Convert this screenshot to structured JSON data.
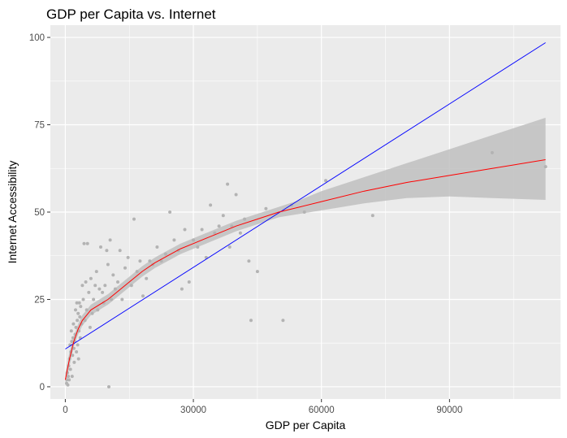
{
  "chart_data": {
    "type": "scatter",
    "title": "GDP per Capita vs. Internet",
    "xlabel": "GDP per Capita",
    "ylabel": "Internet Accessibility",
    "xlim": [
      -3500,
      116000
    ],
    "ylim": [
      -3.5,
      103.5
    ],
    "x_ticks": [
      0,
      30000,
      60000,
      90000
    ],
    "x_tick_labels": [
      "0",
      "30000",
      "60000",
      "90000"
    ],
    "y_ticks": [
      0,
      25,
      50,
      75,
      100
    ],
    "y_tick_labels": [
      "0",
      "25",
      "50",
      "75",
      "100"
    ],
    "grid": true,
    "legend": "none",
    "colors": {
      "panel": "#ebebeb",
      "grid": "#ffffff",
      "points": "#b3b3b3",
      "smooth": "#ff0000",
      "band": "#bfbfbf",
      "linear": "#0000ff"
    },
    "points": [
      [
        300,
        1
      ],
      [
        400,
        2
      ],
      [
        500,
        4
      ],
      [
        600,
        0.5
      ],
      [
        700,
        3
      ],
      [
        800,
        6
      ],
      [
        900,
        2
      ],
      [
        1000,
        8
      ],
      [
        1100,
        12
      ],
      [
        1200,
        5
      ],
      [
        1300,
        10
      ],
      [
        1400,
        16
      ],
      [
        1500,
        13
      ],
      [
        1600,
        3
      ],
      [
        1700,
        9
      ],
      [
        1800,
        14
      ],
      [
        1900,
        18
      ],
      [
        2000,
        11
      ],
      [
        2100,
        7
      ],
      [
        2200,
        13
      ],
      [
        2300,
        15
      ],
      [
        2400,
        22
      ],
      [
        2500,
        17
      ],
      [
        2600,
        10
      ],
      [
        2700,
        24
      ],
      [
        2800,
        19
      ],
      [
        2900,
        12
      ],
      [
        3000,
        21
      ],
      [
        3100,
        8
      ],
      [
        3200,
        16
      ],
      [
        3300,
        24
      ],
      [
        3400,
        20
      ],
      [
        3500,
        14
      ],
      [
        3600,
        23
      ],
      [
        3800,
        18
      ],
      [
        4000,
        29
      ],
      [
        4200,
        25
      ],
      [
        4400,
        41
      ],
      [
        4600,
        19
      ],
      [
        4800,
        30
      ],
      [
        5000,
        22
      ],
      [
        5200,
        41
      ],
      [
        5500,
        27
      ],
      [
        5800,
        17
      ],
      [
        6000,
        31
      ],
      [
        6300,
        21
      ],
      [
        6600,
        25
      ],
      [
        7000,
        29
      ],
      [
        7300,
        33
      ],
      [
        7600,
        22
      ],
      [
        8000,
        28
      ],
      [
        8300,
        40
      ],
      [
        8700,
        27
      ],
      [
        9000,
        24
      ],
      [
        9300,
        29
      ],
      [
        9700,
        39
      ],
      [
        10000,
        35
      ],
      [
        10200,
        0
      ],
      [
        10500,
        42
      ],
      [
        10800,
        25
      ],
      [
        11200,
        32
      ],
      [
        11700,
        28
      ],
      [
        12300,
        30
      ],
      [
        12800,
        39
      ],
      [
        13300,
        25
      ],
      [
        14000,
        34
      ],
      [
        14700,
        37
      ],
      [
        15500,
        29
      ],
      [
        16100,
        48
      ],
      [
        16800,
        33
      ],
      [
        17500,
        36
      ],
      [
        18200,
        26
      ],
      [
        19000,
        31
      ],
      [
        19800,
        36
      ],
      [
        20500,
        35
      ],
      [
        21500,
        40
      ],
      [
        22500,
        36
      ],
      [
        23500,
        38
      ],
      [
        24500,
        50
      ],
      [
        25500,
        42
      ],
      [
        26500,
        39
      ],
      [
        27300,
        28
      ],
      [
        28000,
        45
      ],
      [
        29000,
        30
      ],
      [
        30000,
        42
      ],
      [
        31000,
        40
      ],
      [
        32000,
        45
      ],
      [
        33000,
        37
      ],
      [
        34000,
        52
      ],
      [
        35000,
        44
      ],
      [
        36000,
        46
      ],
      [
        37000,
        49
      ],
      [
        38000,
        58
      ],
      [
        38500,
        40
      ],
      [
        39000,
        46
      ],
      [
        40000,
        55
      ],
      [
        41000,
        44
      ],
      [
        42000,
        48
      ],
      [
        43000,
        36
      ],
      [
        43500,
        19
      ],
      [
        45000,
        33
      ],
      [
        47000,
        51
      ],
      [
        51000,
        19
      ],
      [
        53000,
        52
      ],
      [
        56000,
        50
      ],
      [
        61000,
        59
      ],
      [
        72000,
        49
      ],
      [
        100000,
        67
      ],
      [
        112500,
        63
      ]
    ],
    "smooth_curve": [
      [
        0,
        2
      ],
      [
        1000,
        8
      ],
      [
        2000,
        13
      ],
      [
        3000,
        16.5
      ],
      [
        4000,
        19
      ],
      [
        5000,
        20.5
      ],
      [
        6000,
        22
      ],
      [
        8000,
        23.5
      ],
      [
        10000,
        25
      ],
      [
        12000,
        27
      ],
      [
        15000,
        30
      ],
      [
        18000,
        33
      ],
      [
        21000,
        35.5
      ],
      [
        24000,
        37.5
      ],
      [
        27000,
        39.5
      ],
      [
        30000,
        41
      ],
      [
        33000,
        42.5
      ],
      [
        36000,
        44
      ],
      [
        40000,
        46
      ],
      [
        45000,
        48
      ],
      [
        50000,
        50
      ],
      [
        55000,
        51.5
      ],
      [
        60000,
        53
      ],
      [
        70000,
        56
      ],
      [
        80000,
        58.5
      ],
      [
        90000,
        60.5
      ],
      [
        100000,
        62.5
      ],
      [
        112500,
        65
      ]
    ],
    "band_upper": [
      [
        0,
        4
      ],
      [
        1000,
        10
      ],
      [
        2000,
        14.5
      ],
      [
        3000,
        18
      ],
      [
        4000,
        20.5
      ],
      [
        5000,
        22
      ],
      [
        6000,
        23.5
      ],
      [
        8000,
        25
      ],
      [
        10000,
        26.5
      ],
      [
        12000,
        28.5
      ],
      [
        15000,
        31.5
      ],
      [
        18000,
        34.5
      ],
      [
        21000,
        37
      ],
      [
        24000,
        39
      ],
      [
        27000,
        41
      ],
      [
        30000,
        42.5
      ],
      [
        33000,
        44
      ],
      [
        36000,
        45.5
      ],
      [
        40000,
        47.5
      ],
      [
        45000,
        49.5
      ],
      [
        50000,
        51.5
      ],
      [
        55000,
        53.5
      ],
      [
        60000,
        56
      ],
      [
        70000,
        60
      ],
      [
        80000,
        64
      ],
      [
        90000,
        68
      ],
      [
        100000,
        72
      ],
      [
        112500,
        77
      ]
    ],
    "band_lower": [
      [
        0,
        0
      ],
      [
        1000,
        6
      ],
      [
        2000,
        11.5
      ],
      [
        3000,
        15
      ],
      [
        4000,
        17.5
      ],
      [
        5000,
        19
      ],
      [
        6000,
        20.5
      ],
      [
        8000,
        22
      ],
      [
        10000,
        23.5
      ],
      [
        12000,
        25.5
      ],
      [
        15000,
        28.5
      ],
      [
        18000,
        31.5
      ],
      [
        21000,
        34
      ],
      [
        24000,
        36
      ],
      [
        27000,
        38
      ],
      [
        30000,
        39.5
      ],
      [
        33000,
        41
      ],
      [
        36000,
        42.5
      ],
      [
        40000,
        44.5
      ],
      [
        45000,
        46.5
      ],
      [
        50000,
        48.5
      ],
      [
        55000,
        49.5
      ],
      [
        60000,
        50.5
      ],
      [
        70000,
        52.5
      ],
      [
        80000,
        54
      ],
      [
        90000,
        54.5
      ],
      [
        100000,
        54
      ],
      [
        112500,
        53.5
      ]
    ],
    "linear_fit": [
      [
        0,
        10.8
      ],
      [
        112500,
        98.5
      ]
    ]
  }
}
